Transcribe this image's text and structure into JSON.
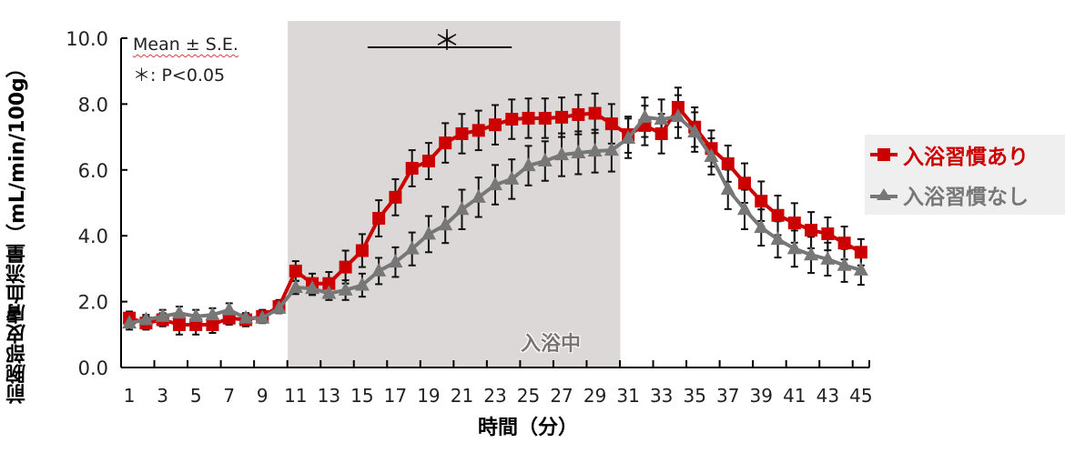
{
  "chart_data": {
    "type": "line",
    "title": "",
    "xlabel": "時間（分）",
    "ylabel": "前腕部皮膚血流量（mL/min/100g）",
    "ylim": [
      0,
      10
    ],
    "yticks": [
      "0.0",
      "2.0",
      "4.0",
      "6.0",
      "8.0",
      "10.0"
    ],
    "xtick_labels": [
      "1",
      "3",
      "5",
      "7",
      "9",
      "11",
      "13",
      "15",
      "17",
      "19",
      "21",
      "23",
      "25",
      "27",
      "29",
      "31",
      "33",
      "35",
      "37",
      "39",
      "41",
      "43",
      "45"
    ],
    "x": [
      1,
      2,
      3,
      4,
      5,
      6,
      7,
      8,
      9,
      10,
      11,
      12,
      13,
      14,
      15,
      16,
      17,
      18,
      19,
      20,
      21,
      22,
      23,
      24,
      25,
      26,
      27,
      28,
      29,
      30,
      31,
      32,
      33,
      34,
      35,
      36,
      37,
      38,
      39,
      40,
      41,
      42,
      43,
      44,
      45
    ],
    "series": [
      {
        "name": "入浴習慣あり",
        "color": "#cc0000",
        "marker": "square",
        "values": [
          1.5,
          1.35,
          1.45,
          1.3,
          1.3,
          1.3,
          1.5,
          1.45,
          1.55,
          1.85,
          2.93,
          2.55,
          2.55,
          3.05,
          3.55,
          4.53,
          5.17,
          6.05,
          6.27,
          6.82,
          7.1,
          7.2,
          7.37,
          7.54,
          7.57,
          7.57,
          7.6,
          7.68,
          7.72,
          7.4,
          7.07,
          7.35,
          7.1,
          7.9,
          7.3,
          6.65,
          6.19,
          5.6,
          5.05,
          4.62,
          4.39,
          4.17,
          4.06,
          3.78,
          3.5
        ],
        "se": [
          0.2,
          0.2,
          0.2,
          0.3,
          0.3,
          0.25,
          0.2,
          0.2,
          0.2,
          0.2,
          0.3,
          0.3,
          0.35,
          0.5,
          0.5,
          0.55,
          0.55,
          0.55,
          0.55,
          0.6,
          0.6,
          0.6,
          0.6,
          0.6,
          0.6,
          0.6,
          0.6,
          0.6,
          0.6,
          0.6,
          0.55,
          0.6,
          0.6,
          0.6,
          0.6,
          0.55,
          0.55,
          0.6,
          0.6,
          0.6,
          0.6,
          0.55,
          0.5,
          0.5,
          0.4
        ]
      },
      {
        "name": "入浴習慣なし",
        "color": "#777777",
        "marker": "triangle",
        "values": [
          1.35,
          1.45,
          1.55,
          1.65,
          1.55,
          1.6,
          1.75,
          1.5,
          1.5,
          1.8,
          2.43,
          2.4,
          2.25,
          2.35,
          2.5,
          2.93,
          3.2,
          3.6,
          4.05,
          4.33,
          4.8,
          5.17,
          5.55,
          5.72,
          6.13,
          6.27,
          6.46,
          6.52,
          6.57,
          6.6,
          6.96,
          7.6,
          7.54,
          7.62,
          7.15,
          6.41,
          5.41,
          4.8,
          4.25,
          3.89,
          3.61,
          3.42,
          3.29,
          3.1,
          2.96
        ],
        "se": [
          0.2,
          0.15,
          0.2,
          0.2,
          0.2,
          0.2,
          0.2,
          0.15,
          0.15,
          0.15,
          0.2,
          0.2,
          0.2,
          0.3,
          0.35,
          0.4,
          0.45,
          0.5,
          0.55,
          0.55,
          0.6,
          0.6,
          0.6,
          0.6,
          0.6,
          0.6,
          0.65,
          0.65,
          0.65,
          0.65,
          0.6,
          0.6,
          0.6,
          0.65,
          0.6,
          0.55,
          0.6,
          0.6,
          0.55,
          0.55,
          0.55,
          0.55,
          0.5,
          0.5,
          0.45
        ]
      }
    ],
    "shaded_region": {
      "x_start": 10.5,
      "x_end": 30.5,
      "label": "入浴中",
      "color": "#ddd8d8"
    },
    "significance": {
      "x_start": 15,
      "x_end": 24,
      "label": "＊"
    },
    "annotations": [
      "Mean ± S.E.",
      "＊: P<0.05"
    ],
    "legend_position": "right"
  },
  "labels": {
    "ylabel": "前腕部皮膚血流量（mL/min/100g）",
    "xlabel": "時間（分）",
    "note_mean": "Mean ± S.E.",
    "note_p": "＊: P<0.05",
    "bath_label": "入浴中",
    "sig_star": "＊",
    "legend_0": "入浴習慣あり",
    "legend_1": "入浴習慣なし"
  }
}
